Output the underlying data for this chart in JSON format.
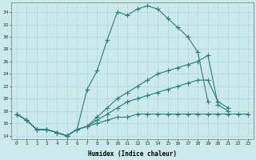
{
  "xlabel": "Humidex (Indice chaleur)",
  "ylabel": "",
  "bg_color": "#cce9ec",
  "line_color": "#2e7c7c",
  "grid_color": "#b0d8dc",
  "xlim": [
    -0.5,
    23.5
  ],
  "ylim": [
    13.5,
    35.5
  ],
  "xticks": [
    0,
    1,
    2,
    3,
    4,
    5,
    6,
    7,
    8,
    9,
    10,
    11,
    12,
    13,
    14,
    15,
    16,
    17,
    18,
    19,
    20,
    21,
    22,
    23
  ],
  "yticks": [
    14,
    16,
    18,
    20,
    22,
    24,
    26,
    28,
    30,
    32,
    34
  ],
  "curves": [
    [
      17.5,
      16.5,
      15.0,
      15.0,
      14.5,
      14.0,
      15.0,
      21.5,
      24.5,
      29.5,
      34.0,
      33.5,
      34.5,
      35.0,
      34.5,
      33.0,
      31.5,
      30.0,
      27.5,
      19.5,
      null,
      null,
      null,
      null
    ],
    [
      17.5,
      16.5,
      15.0,
      15.0,
      14.5,
      14.0,
      15.0,
      15.5,
      17.0,
      18.5,
      20.0,
      21.0,
      22.0,
      23.0,
      24.0,
      24.5,
      25.0,
      25.5,
      26.0,
      27.0,
      19.0,
      18.0,
      null,
      null
    ],
    [
      17.5,
      16.5,
      15.0,
      15.0,
      14.5,
      14.0,
      15.0,
      15.5,
      16.5,
      17.5,
      18.5,
      19.5,
      20.0,
      20.5,
      21.0,
      21.5,
      22.0,
      22.5,
      23.0,
      23.0,
      19.5,
      18.5,
      null,
      null
    ],
    [
      17.5,
      16.5,
      15.0,
      15.0,
      14.5,
      14.0,
      15.0,
      15.5,
      16.0,
      16.5,
      17.0,
      17.0,
      17.5,
      17.5,
      17.5,
      17.5,
      17.5,
      17.5,
      17.5,
      17.5,
      17.5,
      17.5,
      17.5,
      17.5
    ]
  ]
}
